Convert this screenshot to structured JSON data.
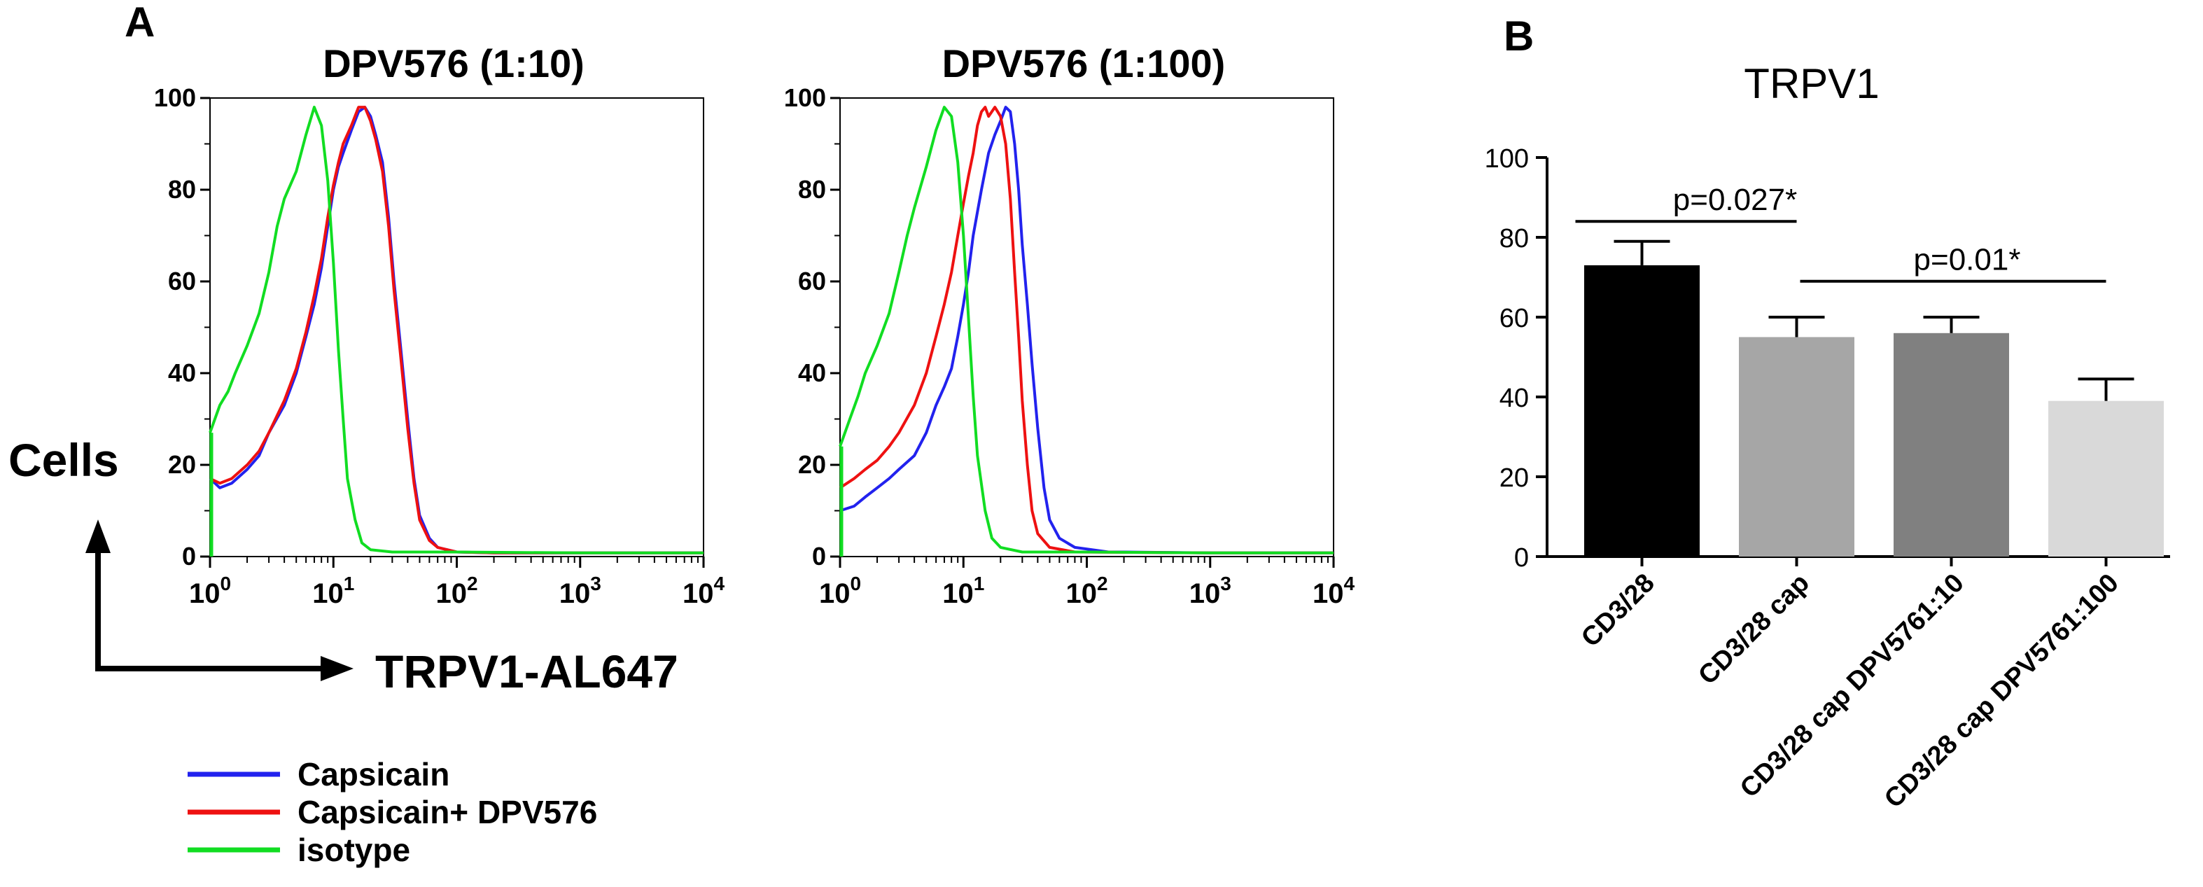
{
  "panel_a": {
    "label": "A",
    "y_axis_label": "Cells",
    "x_axis_label": "TRPV1-AL647",
    "legend": [
      {
        "name": "Capsicain",
        "color": "#2222ee"
      },
      {
        "name": "Capsicain+ DPV576",
        "color": "#ee1111"
      },
      {
        "name": "isotype",
        "color": "#11dd22"
      }
    ]
  },
  "panel_b": {
    "label": "B"
  },
  "chart_data": [
    {
      "type": "line",
      "title": "DPV576 (1:10)",
      "xscale": "log",
      "xlim": [
        1,
        10000
      ],
      "ylim": [
        0,
        100
      ],
      "x_ticks": [
        1,
        10,
        100,
        1000,
        10000
      ],
      "x_tick_labels": [
        {
          "base": "10",
          "exp": "0"
        },
        {
          "base": "10",
          "exp": "1"
        },
        {
          "base": "10",
          "exp": "2"
        },
        {
          "base": "10",
          "exp": "3"
        },
        {
          "base": "10",
          "exp": "4"
        }
      ],
      "y_ticks": [
        0,
        20,
        40,
        60,
        80,
        100
      ],
      "y_tick_labels": [
        "0",
        "20",
        "40",
        "60",
        "80",
        "100"
      ],
      "series": [
        {
          "name": "Capsicain",
          "color": "#2222ee",
          "points": [
            [
              1,
              17
            ],
            [
              1.2,
              15
            ],
            [
              1.5,
              16
            ],
            [
              2,
              19
            ],
            [
              2.5,
              22
            ],
            [
              3,
              27
            ],
            [
              4,
              33
            ],
            [
              5,
              40
            ],
            [
              6,
              48
            ],
            [
              7,
              55
            ],
            [
              8,
              63
            ],
            [
              9,
              72
            ],
            [
              10,
              80
            ],
            [
              11,
              85
            ],
            [
              12,
              88
            ],
            [
              14,
              93
            ],
            [
              16,
              97
            ],
            [
              18,
              98
            ],
            [
              20,
              96
            ],
            [
              22,
              92
            ],
            [
              25,
              86
            ],
            [
              28,
              74
            ],
            [
              31,
              60
            ],
            [
              35,
              46
            ],
            [
              40,
              30
            ],
            [
              45,
              17
            ],
            [
              50,
              9
            ],
            [
              60,
              4
            ],
            [
              70,
              2
            ],
            [
              100,
              1
            ],
            [
              200,
              0.8
            ],
            [
              1000,
              0.8
            ],
            [
              10000,
              0.8
            ]
          ]
        },
        {
          "name": "Capsicain+ DPV576",
          "color": "#ee1111",
          "points": [
            [
              1,
              17
            ],
            [
              1.2,
              16
            ],
            [
              1.5,
              17
            ],
            [
              2,
              20
            ],
            [
              2.5,
              23
            ],
            [
              3,
              27
            ],
            [
              4,
              34
            ],
            [
              5,
              41
            ],
            [
              6,
              49
            ],
            [
              7,
              57
            ],
            [
              8,
              65
            ],
            [
              9,
              74
            ],
            [
              10,
              81
            ],
            [
              11,
              86
            ],
            [
              12,
              90
            ],
            [
              14,
              94
            ],
            [
              16,
              98
            ],
            [
              18,
              98
            ],
            [
              20,
              95
            ],
            [
              22,
              91
            ],
            [
              25,
              84
            ],
            [
              28,
              72
            ],
            [
              31,
              58
            ],
            [
              35,
              44
            ],
            [
              40,
              28
            ],
            [
              45,
              16
            ],
            [
              50,
              8
            ],
            [
              60,
              3.5
            ],
            [
              70,
              2
            ],
            [
              100,
              1
            ],
            [
              200,
              0.8
            ],
            [
              1000,
              0.8
            ],
            [
              10000,
              0.8
            ]
          ]
        },
        {
          "name": "isotype",
          "color": "#11dd22",
          "points": [
            [
              1,
              27
            ],
            [
              1.2,
              33
            ],
            [
              1.4,
              36
            ],
            [
              1.6,
              40
            ],
            [
              2,
              46
            ],
            [
              2.5,
              53
            ],
            [
              3,
              62
            ],
            [
              3.5,
              72
            ],
            [
              4,
              78
            ],
            [
              5,
              84
            ],
            [
              6,
              92
            ],
            [
              7,
              98
            ],
            [
              8,
              94
            ],
            [
              9,
              82
            ],
            [
              10,
              64
            ],
            [
              11,
              45
            ],
            [
              12,
              30
            ],
            [
              13,
              17
            ],
            [
              15,
              8
            ],
            [
              17,
              3
            ],
            [
              20,
              1.5
            ],
            [
              30,
              1
            ],
            [
              100,
              1
            ],
            [
              1000,
              0.8
            ],
            [
              10000,
              0.8
            ]
          ]
        }
      ]
    },
    {
      "type": "line",
      "title": "DPV576 (1:100)",
      "xscale": "log",
      "xlim": [
        1,
        10000
      ],
      "ylim": [
        0,
        100
      ],
      "x_ticks": [
        1,
        10,
        100,
        1000,
        10000
      ],
      "x_tick_labels": [
        {
          "base": "10",
          "exp": "0"
        },
        {
          "base": "10",
          "exp": "1"
        },
        {
          "base": "10",
          "exp": "2"
        },
        {
          "base": "10",
          "exp": "3"
        },
        {
          "base": "10",
          "exp": "4"
        }
      ],
      "y_ticks": [
        0,
        20,
        40,
        60,
        80,
        100
      ],
      "y_tick_labels": [
        "0",
        "20",
        "40",
        "60",
        "80",
        "100"
      ],
      "series": [
        {
          "name": "Capsicain",
          "color": "#2222ee",
          "points": [
            [
              1,
              10
            ],
            [
              1.3,
              11
            ],
            [
              1.6,
              13
            ],
            [
              2,
              15
            ],
            [
              2.5,
              17
            ],
            [
              3,
              19
            ],
            [
              4,
              22
            ],
            [
              5,
              27
            ],
            [
              6,
              33
            ],
            [
              7,
              37
            ],
            [
              8,
              41
            ],
            [
              9,
              48
            ],
            [
              10,
              55
            ],
            [
              11,
              62
            ],
            [
              12,
              70
            ],
            [
              14,
              80
            ],
            [
              16,
              88
            ],
            [
              18,
              92
            ],
            [
              20,
              95
            ],
            [
              22,
              98
            ],
            [
              24,
              97
            ],
            [
              26,
              90
            ],
            [
              28,
              80
            ],
            [
              30,
              68
            ],
            [
              33,
              55
            ],
            [
              36,
              42
            ],
            [
              40,
              28
            ],
            [
              45,
              15
            ],
            [
              50,
              8
            ],
            [
              60,
              4
            ],
            [
              80,
              2
            ],
            [
              150,
              1
            ],
            [
              200,
              1
            ],
            [
              1000,
              0.8
            ],
            [
              10000,
              0.8
            ]
          ]
        },
        {
          "name": "Capsicain+ DPV576",
          "color": "#ee1111",
          "points": [
            [
              1,
              15
            ],
            [
              1.3,
              17
            ],
            [
              1.6,
              19
            ],
            [
              2,
              21
            ],
            [
              2.5,
              24
            ],
            [
              3,
              27
            ],
            [
              4,
              33
            ],
            [
              5,
              40
            ],
            [
              6,
              48
            ],
            [
              7,
              55
            ],
            [
              8,
              62
            ],
            [
              9,
              70
            ],
            [
              10,
              77
            ],
            [
              11,
              83
            ],
            [
              12,
              88
            ],
            [
              13,
              94
            ],
            [
              14,
              97
            ],
            [
              15,
              98
            ],
            [
              16,
              96
            ],
            [
              18,
              98
            ],
            [
              20,
              96
            ],
            [
              22,
              90
            ],
            [
              24,
              78
            ],
            [
              26,
              62
            ],
            [
              28,
              48
            ],
            [
              30,
              34
            ],
            [
              33,
              20
            ],
            [
              36,
              10
            ],
            [
              40,
              5
            ],
            [
              50,
              2
            ],
            [
              80,
              1
            ],
            [
              1000,
              0.8
            ],
            [
              10000,
              0.8
            ]
          ]
        },
        {
          "name": "isotype",
          "color": "#11dd22",
          "points": [
            [
              1,
              24
            ],
            [
              1.2,
              30
            ],
            [
              1.4,
              35
            ],
            [
              1.6,
              40
            ],
            [
              2,
              46
            ],
            [
              2.5,
              53
            ],
            [
              3,
              62
            ],
            [
              3.5,
              70
            ],
            [
              4,
              76
            ],
            [
              5,
              85
            ],
            [
              6,
              93
            ],
            [
              7,
              98
            ],
            [
              8,
              96
            ],
            [
              9,
              86
            ],
            [
              10,
              70
            ],
            [
              11,
              52
            ],
            [
              12,
              35
            ],
            [
              13,
              22
            ],
            [
              15,
              10
            ],
            [
              17,
              4
            ],
            [
              20,
              2
            ],
            [
              30,
              1
            ],
            [
              100,
              1
            ],
            [
              1000,
              0.8
            ],
            [
              10000,
              0.8
            ]
          ]
        }
      ]
    },
    {
      "type": "bar",
      "title": "TRPV1",
      "categories": [
        "CD3/28",
        "CD3/28 cap",
        "CD3/28 cap DPV5761:10",
        "CD3/28 cap DPV5761:100"
      ],
      "values": [
        73,
        55,
        56,
        39
      ],
      "errors": [
        6,
        5,
        4,
        5.5
      ],
      "colors": [
        "#000000",
        "#a6a6a6",
        "#808080",
        "#d9d9d9"
      ],
      "ylim": [
        0,
        100
      ],
      "y_ticks": [
        0,
        20,
        40,
        60,
        80,
        100
      ],
      "y_tick_labels": [
        "0",
        "20",
        "40",
        "60",
        "80",
        "100"
      ],
      "annotations": [
        {
          "text": "p=0.027*",
          "from": 0,
          "to": 1,
          "y": 84
        },
        {
          "text": "p=0.01*",
          "from": 1,
          "to": 3,
          "y": 69
        }
      ]
    }
  ]
}
